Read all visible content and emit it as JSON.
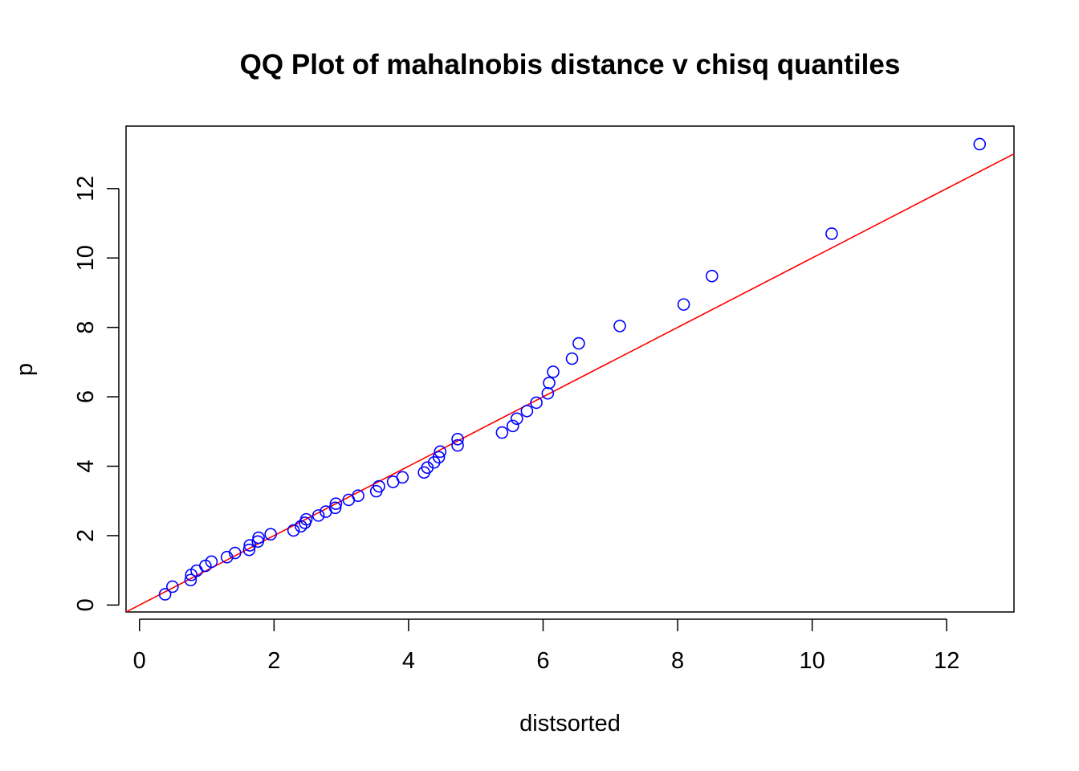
{
  "chart_data": {
    "type": "scatter",
    "title": "QQ Plot of mahalnobis distance v chisq quantiles",
    "xlabel": "distsorted",
    "ylabel": "p",
    "xlim": [
      -0.2,
      13.0
    ],
    "ylim": [
      -0.2,
      13.8
    ],
    "xticks": [
      0,
      2,
      4,
      6,
      8,
      10,
      12
    ],
    "yticks": [
      0,
      2,
      4,
      6,
      8,
      10,
      12
    ],
    "xtick_labels": [
      "0",
      "2",
      "4",
      "6",
      "8",
      "10",
      "12"
    ],
    "ytick_labels": [
      "0",
      "2",
      "4",
      "6",
      "8",
      "10",
      "12"
    ],
    "grid": false,
    "point_color": "#0000ff",
    "line_color": "#ff0000",
    "reference_line": {
      "intercept": 0.0,
      "slope": 1.0
    },
    "points": [
      [
        0.38,
        0.31
      ],
      [
        0.49,
        0.53
      ],
      [
        0.76,
        0.72
      ],
      [
        0.77,
        0.87
      ],
      [
        0.85,
        0.99
      ],
      [
        0.98,
        1.13
      ],
      [
        1.07,
        1.25
      ],
      [
        1.3,
        1.38
      ],
      [
        1.42,
        1.5
      ],
      [
        1.63,
        1.59
      ],
      [
        1.64,
        1.72
      ],
      [
        1.76,
        1.83
      ],
      [
        1.77,
        1.94
      ],
      [
        1.95,
        2.04
      ],
      [
        2.29,
        2.15
      ],
      [
        2.4,
        2.27
      ],
      [
        2.46,
        2.37
      ],
      [
        2.48,
        2.47
      ],
      [
        2.66,
        2.58
      ],
      [
        2.77,
        2.69
      ],
      [
        2.91,
        2.8
      ],
      [
        2.92,
        2.92
      ],
      [
        3.11,
        3.03
      ],
      [
        3.25,
        3.15
      ],
      [
        3.52,
        3.28
      ],
      [
        3.56,
        3.42
      ],
      [
        3.77,
        3.55
      ],
      [
        3.91,
        3.68
      ],
      [
        4.23,
        3.82
      ],
      [
        4.28,
        3.96
      ],
      [
        4.38,
        4.11
      ],
      [
        4.45,
        4.26
      ],
      [
        4.47,
        4.42
      ],
      [
        4.73,
        4.6
      ],
      [
        4.73,
        4.78
      ],
      [
        5.39,
        4.97
      ],
      [
        5.55,
        5.16
      ],
      [
        5.61,
        5.37
      ],
      [
        5.76,
        5.59
      ],
      [
        5.9,
        5.83
      ],
      [
        6.07,
        6.1
      ],
      [
        6.09,
        6.4
      ],
      [
        6.15,
        6.72
      ],
      [
        6.43,
        7.1
      ],
      [
        6.53,
        7.54
      ],
      [
        7.14,
        8.04
      ],
      [
        8.09,
        8.66
      ],
      [
        8.51,
        9.48
      ],
      [
        10.29,
        10.7
      ],
      [
        12.49,
        13.28
      ]
    ]
  }
}
